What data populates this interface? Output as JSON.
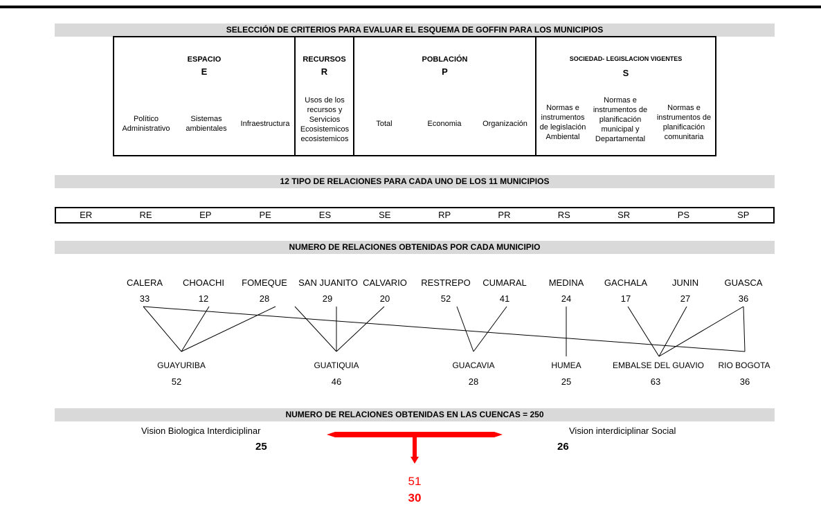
{
  "titles": {
    "criteria": "SELECCIÓN DE CRITERIOS PARA EVALUAR EL ESQUEMA DE GOFFIN PARA LOS MUNICIPIOS",
    "relations": "12 TIPO DE RELACIONES PARA CADA UNO DE LOS 11 MUNICIPIOS",
    "per_municipality": "NUMERO DE RELACIONES OBTENIDAS POR CADA MUNICIPIO",
    "basins_total": "NUMERO DE RELACIONES OBTENIDAS EN LAS CUENCAS = 250"
  },
  "criteria": {
    "espacio": {
      "header": "ESPACIO",
      "letter": "E"
    },
    "recursos": {
      "header": "RECURSOS",
      "letter": "R"
    },
    "poblacion": {
      "header": "POBLACIÓN",
      "letter": "P"
    },
    "sociedad": {
      "header": "SOCIEDAD- LEGISLACION VIGENTES",
      "letter": "S"
    },
    "sub": {
      "politico": "Político Administrativo",
      "sistemas": "Sistemas ambientales",
      "infra": "Infraestructura",
      "usos": "Usos de los recursos y Servicios Ecosistemicos ecosistemicos",
      "total": "Total",
      "economia": "Economia",
      "organizacion": "Organización",
      "normas1": "Normas e instrumentos de legislación Ambiental",
      "normas2": "Normas e instrumentos de planificación municipal y Departamental",
      "normas3": "Normas e instrumentos de planificación comunitaria"
    }
  },
  "relation_types": [
    "ER",
    "RE",
    "EP",
    "PE",
    "ES",
    "SE",
    "RP",
    "PR",
    "RS",
    "SR",
    "PS",
    "SP"
  ],
  "municipalities": [
    {
      "name": "CALERA",
      "value": "33"
    },
    {
      "name": "CHOACHI",
      "value": "12"
    },
    {
      "name": "FOMEQUE",
      "value": "28"
    },
    {
      "name": "SAN JUANITO",
      "value": "29"
    },
    {
      "name": "CALVARIO",
      "value": "20"
    },
    {
      "name": "RESTREPO",
      "value": "52"
    },
    {
      "name": "CUMARAL",
      "value": "41"
    },
    {
      "name": "MEDINA",
      "value": "24"
    },
    {
      "name": "GACHALA",
      "value": "17"
    },
    {
      "name": "JUNIN",
      "value": "27"
    },
    {
      "name": "GUASCA",
      "value": "36"
    }
  ],
  "basins": [
    {
      "name": "GUAYURIBA",
      "value": "52"
    },
    {
      "name": "GUATIQUIA",
      "value": "46"
    },
    {
      "name": "GUACAVIA",
      "value": "28"
    },
    {
      "name": "HUMEA",
      "value": "25"
    },
    {
      "name": "EMBALSE DEL GUAVIO",
      "value": "63"
    },
    {
      "name": "RIO BOGOTA",
      "value": "36"
    }
  ],
  "vision": {
    "bio_label": "Vision Biologica Interdiciplinar",
    "bio_value": "25",
    "social_label": "Vision interdiciplinar Social",
    "social_value": "26",
    "sum_value": "51",
    "final_value": "30"
  },
  "colors": {
    "band": "#d9d9d9",
    "arrow": "#ff0000"
  }
}
